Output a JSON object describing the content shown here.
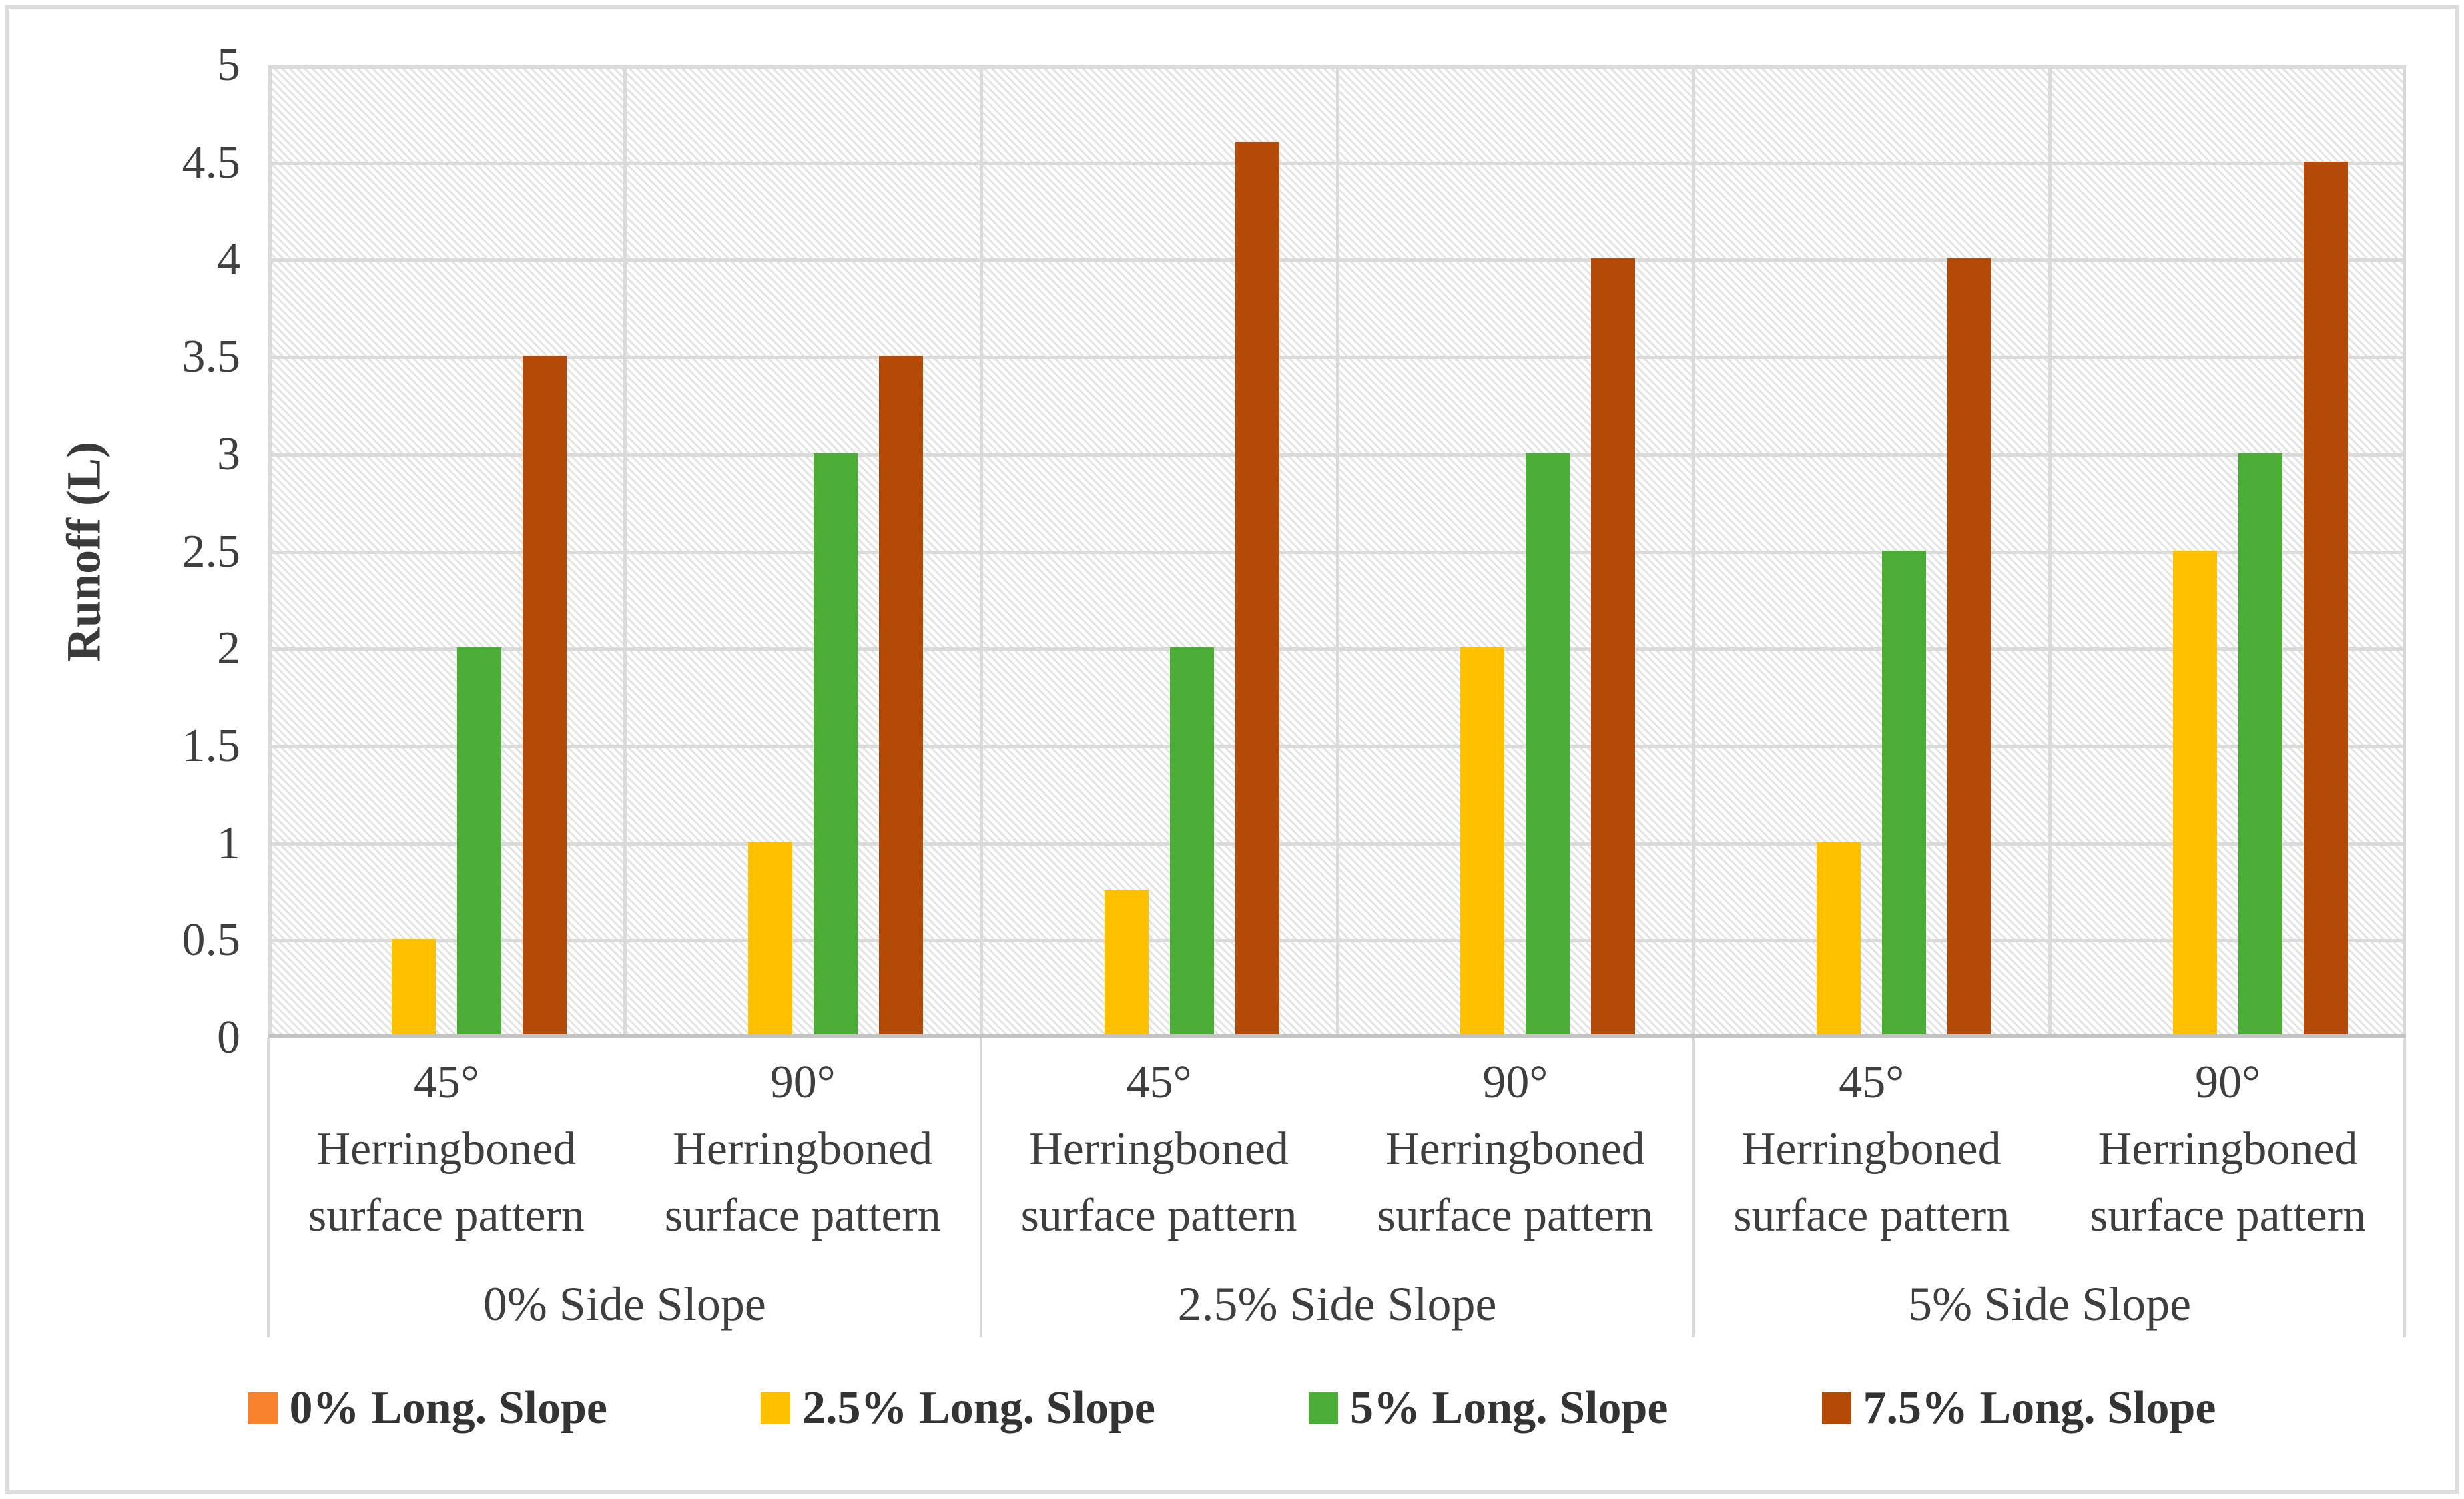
{
  "figure": {
    "border_color": "#dcdcdc",
    "background_color": "#ffffff",
    "plot_hatch_color": "#e3e3e3",
    "gridline_color": "#dadada",
    "axis_line_color": "#c3c3c3",
    "separator_color": "#d9d9d9",
    "text_color": "#3e3e3e"
  },
  "chart_data": {
    "type": "bar",
    "title": "",
    "xlabel": "",
    "ylabel": "Runoff (L)",
    "ylim": [
      0,
      5
    ],
    "ytick_step": 0.5,
    "ytick_labels": [
      "0",
      "0.5",
      "1",
      "1.5",
      "2",
      "2.5",
      "3",
      "3.5",
      "4",
      "4.5",
      "5"
    ],
    "grid": "horizontal gridlines every 0.5; vertical lines at category boundaries; hatched plot background",
    "legend_position": "bottom",
    "group_labels": [
      "0% Side Slope",
      "2.5% Side Slope",
      "5% Side Slope"
    ],
    "categories": [
      {
        "group": "0% Side Slope",
        "label_lines": [
          "45°",
          "Herringboned",
          "surface pattern"
        ]
      },
      {
        "group": "0% Side Slope",
        "label_lines": [
          "90°",
          "Herringboned",
          "surface pattern"
        ]
      },
      {
        "group": "2.5% Side Slope",
        "label_lines": [
          "45°",
          "Herringboned",
          "surface pattern"
        ]
      },
      {
        "group": "2.5% Side Slope",
        "label_lines": [
          "90°",
          "Herringboned",
          "surface pattern"
        ]
      },
      {
        "group": "5% Side Slope",
        "label_lines": [
          "45°",
          "Herringboned",
          "surface pattern"
        ]
      },
      {
        "group": "5% Side Slope",
        "label_lines": [
          "90°",
          "Herringboned",
          "surface pattern"
        ]
      }
    ],
    "series": [
      {
        "name": "0% Long. Slope",
        "color": "#f8812c",
        "values": [
          0,
          0,
          0,
          0,
          0,
          0
        ]
      },
      {
        "name": "2.5% Long. Slope",
        "color": "#ffc000",
        "values": [
          0.5,
          1,
          0.75,
          2,
          1,
          2.5
        ]
      },
      {
        "name": "5% Long. Slope",
        "color": "#4bad35",
        "values": [
          2,
          3,
          2,
          3,
          2.5,
          3
        ]
      },
      {
        "name": "7.5% Long. Slope",
        "color": "#b44a07",
        "values": [
          3.5,
          3.5,
          4.6,
          4,
          4,
          4.5
        ]
      }
    ]
  }
}
